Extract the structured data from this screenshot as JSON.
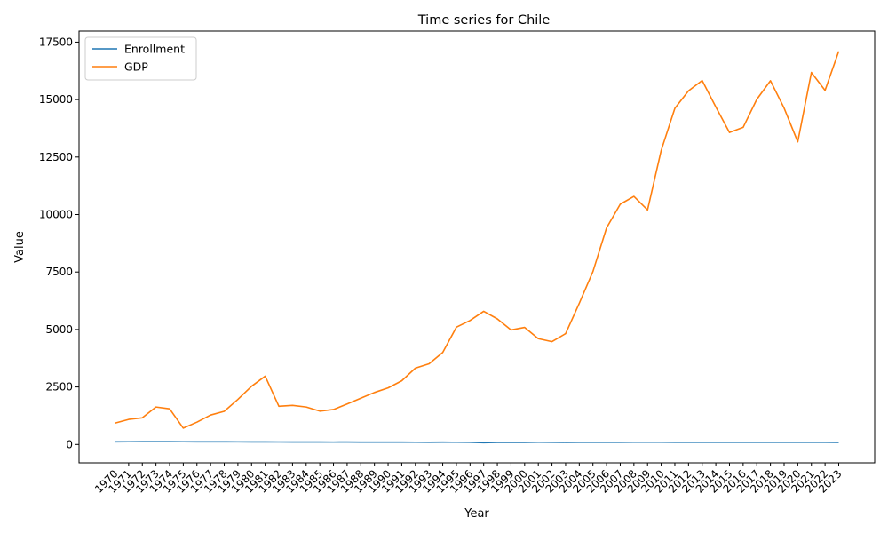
{
  "chart_data": {
    "type": "line",
    "title": "Time series for Chile",
    "xlabel": "Year",
    "ylabel": "Value",
    "ylim": [
      -800,
      17980
    ],
    "yticks": [
      0,
      2500,
      5000,
      7500,
      10000,
      12500,
      15000,
      17500
    ],
    "ytick_labels": [
      "0",
      "2500",
      "5000",
      "7500",
      "10000",
      "12500",
      "15000",
      "17500"
    ],
    "legend_position": "upper-left",
    "grid": false,
    "x": [
      "1970",
      "1971",
      "1972",
      "1973",
      "1974",
      "1975",
      "1976",
      "1977",
      "1978",
      "1979",
      "1980",
      "1981",
      "1982",
      "1983",
      "1984",
      "1985",
      "1986",
      "1987",
      "1988",
      "1989",
      "1990",
      "1991",
      "1992",
      "1993",
      "1994",
      "1995",
      "1996",
      "1997",
      "1998",
      "1999",
      "2000",
      "2001",
      "2002",
      "2003",
      "2004",
      "2005",
      "2006",
      "2007",
      "2008",
      "2009",
      "2010",
      "2011",
      "2012",
      "2013",
      "2014",
      "2015",
      "2016",
      "2017",
      "2018",
      "2019",
      "2020",
      "2021",
      "2022",
      "2023"
    ],
    "series": [
      {
        "name": "Enrollment",
        "color": "#1f77b4",
        "values": [
          115,
          118,
          120,
          121,
          121,
          118,
          116,
          115,
          114,
          113,
          112,
          110,
          108,
          107,
          105,
          104,
          103,
          107,
          102,
          101,
          102,
          100,
          98,
          97,
          100,
          98,
          95,
          75,
          90,
          92,
          90,
          98,
          94,
          93,
          95,
          95,
          96,
          97,
          98,
          99,
          98,
          97,
          97,
          96,
          96,
          96,
          97,
          96,
          96,
          95,
          94,
          94,
          95,
          93
        ]
      },
      {
        "name": "GDP",
        "color": "#ff7f0e",
        "values": [
          930,
          1090,
          1160,
          1630,
          1550,
          710,
          970,
          1280,
          1440,
          1960,
          2530,
          2970,
          1660,
          1700,
          1630,
          1450,
          1520,
          1760,
          2010,
          2260,
          2460,
          2770,
          3320,
          3510,
          4000,
          5100,
          5390,
          5790,
          5460,
          4980,
          5090,
          4600,
          4470,
          4820,
          6140,
          7520,
          9420,
          10450,
          10790,
          10200,
          12790,
          14620,
          15380,
          15830,
          14680,
          13570,
          13790,
          15010,
          15820,
          14630,
          13160,
          16180,
          15400,
          17100
        ]
      }
    ]
  }
}
